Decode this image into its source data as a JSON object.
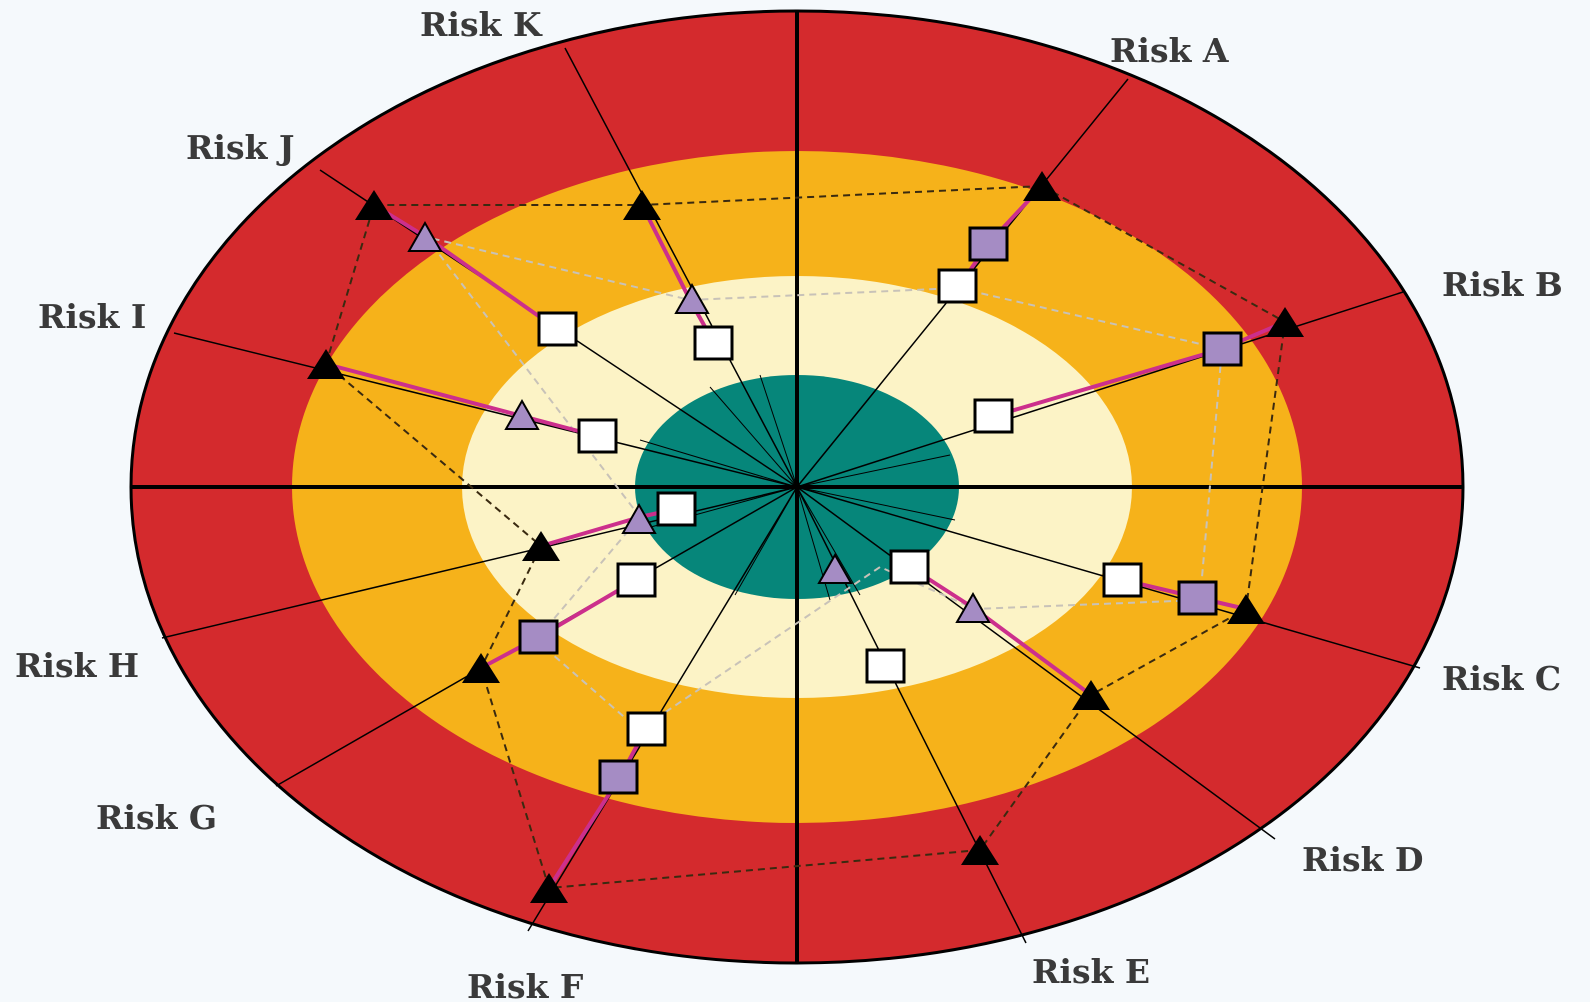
{
  "colors": {
    "background": "#f5f9fc",
    "outer_ring": "#d42a2d",
    "middle_ring": "#f6b21a",
    "inner_ring": "#fcf3c6",
    "core": "#06867a",
    "connector": "#cc2f8c",
    "square_marker": "#a58cc4",
    "triangle_marker": "#a58cc4",
    "outer_triangle": "#000000"
  },
  "labels": {
    "risk_a": "Risk A",
    "risk_b": "Risk B",
    "risk_c": "Risk C",
    "risk_d": "Risk D",
    "risk_e": "Risk E",
    "risk_f": "Risk F",
    "risk_g": "Risk G",
    "risk_h": "Risk H",
    "risk_i": "Risk I",
    "risk_j": "Risk J",
    "risk_k": "Risk K"
  }
}
